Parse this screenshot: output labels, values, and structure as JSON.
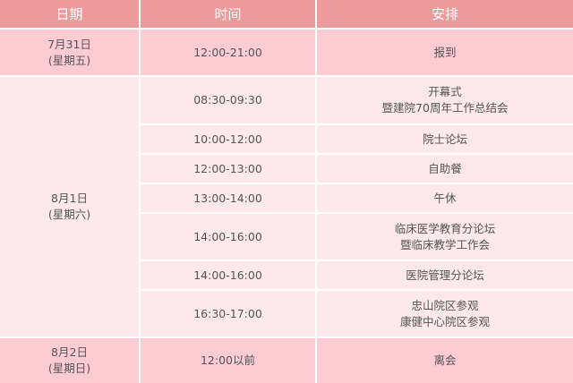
{
  "header": {
    "date": "日期",
    "time": "时间",
    "schedule": "安排"
  },
  "colors": {
    "header": "#ec9a9c",
    "highlight_row": "#fcccd2",
    "light_row": "#fde8eb"
  },
  "days": [
    {
      "date": "7月31日",
      "weekday": "(星期五)",
      "items": [
        {
          "time": "12:00-21:00",
          "event": [
            "报到"
          ]
        }
      ]
    },
    {
      "date": "8月1日",
      "weekday": "(星期六)",
      "items": [
        {
          "time": "08:30-09:30",
          "event": [
            "开幕式",
            "暨建院70周年工作总结会"
          ]
        },
        {
          "time": "10:00-12:00",
          "event": [
            "院士论坛"
          ]
        },
        {
          "time": "12:00-13:00",
          "event": [
            "自助餐"
          ]
        },
        {
          "time": "13:00-14:00",
          "event": [
            "午休"
          ]
        },
        {
          "time": "14:00-16:00",
          "event": [
            "临床医学教育分论坛",
            "暨临床教学工作会"
          ]
        },
        {
          "time": "14:00-16:00",
          "event": [
            "医院管理分论坛"
          ]
        },
        {
          "time": "16:30-17:00",
          "event": [
            "忠山院区参观",
            "康健中心院区参观"
          ]
        }
      ]
    },
    {
      "date": "8月2日",
      "weekday": "(星期日)",
      "items": [
        {
          "time": "12:00以前",
          "event": [
            "离会"
          ]
        }
      ]
    }
  ]
}
